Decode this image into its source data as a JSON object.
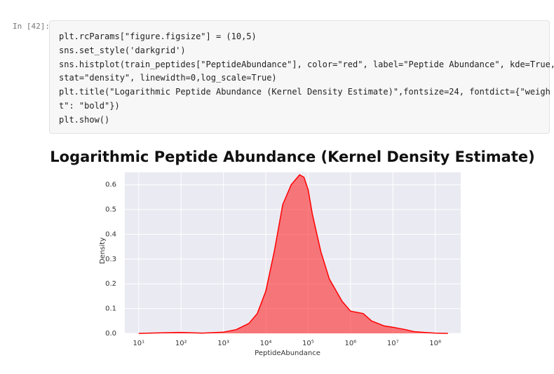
{
  "cell": {
    "prompt": "In [42]:",
    "code": [
      "plt.rcParams[\"figure.figsize\"] = (10,5)",
      "sns.set_style('darkgrid')",
      "sns.histplot(train_peptides[\"PeptideAbundance\"], color=\"red\", label=\"Peptide Abundance\", kde=True,",
      "stat=\"density\", linewidth=0,log_scale=True)",
      "plt.title(\"Logarithmic Peptide Abundance (Kernel Density Estimate)\",fontsize=24, fontdict={\"weigh",
      "t\": \"bold\"})",
      "plt.show()"
    ]
  },
  "chart_data": {
    "type": "area",
    "title": "Logarithmic Peptide Abundance (Kernel Density Estimate)",
    "x_label": "PeptideAbundance",
    "y_label": "Density",
    "x": [
      10,
      100,
      316,
      1000,
      1995,
      3981,
      6310,
      10000,
      15849,
      25119,
      39811,
      63096,
      79433,
      100000,
      125893,
      199526,
      316228,
      630957,
      1000000,
      1995262,
      3162278,
      6309573,
      10000000,
      19952623,
      31622777,
      63095734,
      100000000,
      199526231
    ],
    "series": [
      {
        "color": "red",
        "values": [
          0,
          0.004,
          0.001,
          0.005,
          0.015,
          0.04,
          0.08,
          0.17,
          0.33,
          0.52,
          0.6,
          0.64,
          0.63,
          0.58,
          0.48,
          0.33,
          0.22,
          0.13,
          0.09,
          0.08,
          0.05,
          0.03,
          0.025,
          0.015,
          0.007,
          0.003,
          0.001,
          0
        ]
      }
    ],
    "log_x": true,
    "grid": true,
    "xlim": [
      4.7,
      400000000
    ],
    "xticks": [
      {
        "value": 10,
        "label": "10¹"
      },
      {
        "value": 100,
        "label": "10²"
      },
      {
        "value": 1000,
        "label": "10³"
      },
      {
        "value": 10000,
        "label": "10⁴"
      },
      {
        "value": 100000,
        "label": "10⁵"
      },
      {
        "value": 1000000,
        "label": "10⁶"
      },
      {
        "value": 10000000,
        "label": "10⁷"
      },
      {
        "value": 100000000,
        "label": "10⁸"
      }
    ],
    "ylim": [
      0,
      0.65
    ],
    "yticks": [
      {
        "value": 0,
        "label": "0.0"
      },
      0.1,
      0.2,
      0.3,
      0.4,
      0.5,
      0.6
    ]
  }
}
